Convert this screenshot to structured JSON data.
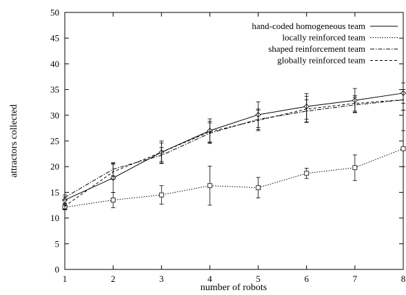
{
  "chart_data": {
    "type": "line",
    "xlabel": "number of robots",
    "ylabel": "attractors collected",
    "xlim": [
      1,
      8
    ],
    "ylim": [
      0,
      50
    ],
    "x_ticks": [
      1,
      2,
      3,
      4,
      5,
      6,
      7,
      8
    ],
    "y_ticks": [
      0,
      5,
      10,
      15,
      20,
      25,
      30,
      35,
      40,
      45,
      50
    ],
    "legend_position": "top-right",
    "grid": false,
    "x": [
      1,
      2,
      3,
      4,
      5,
      6,
      7,
      8
    ],
    "series": [
      {
        "name": "hand-coded homogeneous team",
        "dash": "solid",
        "marker": "diamond",
        "values": [
          13.5,
          17.8,
          22.8,
          27.0,
          30.1,
          31.7,
          32.9,
          34.3
        ],
        "errors": [
          0.6,
          2.8,
          2.2,
          2.3,
          2.5,
          2.5,
          2.3,
          2.0
        ]
      },
      {
        "name": "locally reinforced team",
        "dash": "dotted",
        "marker": "square",
        "values": [
          12.1,
          13.5,
          14.5,
          16.3,
          15.9,
          18.7,
          19.8,
          23.5
        ],
        "errors": [
          0.5,
          1.5,
          1.8,
          3.8,
          2.0,
          1.0,
          2.5,
          3.5
        ]
      },
      {
        "name": "shaped reinforcement team",
        "dash": "dashdot",
        "marker": "none",
        "values": [
          14.0,
          19.5,
          22.2,
          26.5,
          29.2,
          30.8,
          32.0,
          33.0
        ],
        "errors": [
          0.5,
          1.3,
          1.5,
          2.0,
          2.0,
          2.2,
          1.5,
          2.0
        ]
      },
      {
        "name": "globally reinforced team",
        "dash": "dashed",
        "marker": "none",
        "values": [
          12.3,
          19.0,
          22.8,
          26.8,
          29.0,
          31.2,
          32.3,
          33.0
        ],
        "errors": [
          0.5,
          1.5,
          1.8,
          2.0,
          2.0,
          2.5,
          1.5,
          2.0
        ]
      }
    ]
  }
}
